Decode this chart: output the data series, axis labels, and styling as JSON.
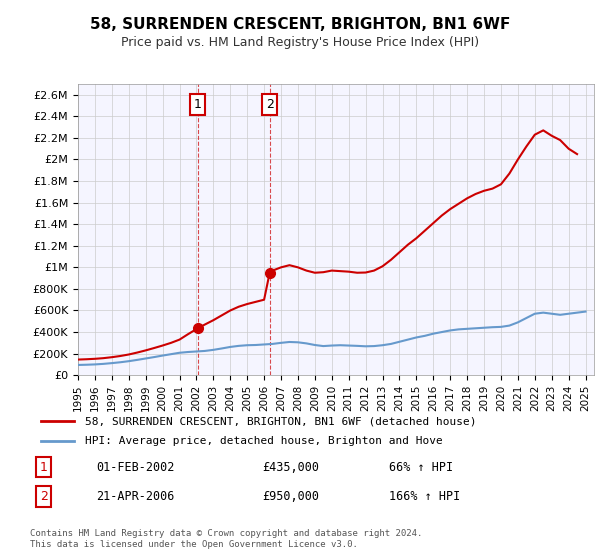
{
  "title": "58, SURRENDEN CRESCENT, BRIGHTON, BN1 6WF",
  "subtitle": "Price paid vs. HM Land Registry's House Price Index (HPI)",
  "ylabel_ticks": [
    "£0",
    "£200K",
    "£400K",
    "£600K",
    "£800K",
    "£1M",
    "£1.2M",
    "£1.4M",
    "£1.6M",
    "£1.8M",
    "£2M",
    "£2.2M",
    "£2.4M",
    "£2.6M"
  ],
  "ytick_vals": [
    0,
    200000,
    400000,
    600000,
    800000,
    1000000,
    1200000,
    1400000,
    1600000,
    1800000,
    2000000,
    2200000,
    2400000,
    2600000
  ],
  "ylim": [
    0,
    2700000
  ],
  "xlim_start": 1995.0,
  "xlim_end": 2025.5,
  "hpi_x": [
    1995,
    1995.5,
    1996,
    1996.5,
    1997,
    1997.5,
    1998,
    1998.5,
    1999,
    1999.5,
    2000,
    2000.5,
    2001,
    2001.5,
    2002,
    2002.5,
    2003,
    2003.5,
    2004,
    2004.5,
    2005,
    2005.5,
    2006,
    2006.5,
    2007,
    2007.5,
    2008,
    2008.5,
    2009,
    2009.5,
    2010,
    2010.5,
    2011,
    2011.5,
    2012,
    2012.5,
    2013,
    2013.5,
    2014,
    2014.5,
    2015,
    2015.5,
    2016,
    2016.5,
    2017,
    2017.5,
    2018,
    2018.5,
    2019,
    2019.5,
    2020,
    2020.5,
    2021,
    2021.5,
    2022,
    2022.5,
    2023,
    2023.5,
    2024,
    2024.5,
    2025
  ],
  "hpi_y": [
    95000,
    97000,
    100000,
    105000,
    112000,
    120000,
    130000,
    142000,
    155000,
    168000,
    182000,
    195000,
    208000,
    215000,
    220000,
    225000,
    235000,
    248000,
    262000,
    272000,
    278000,
    280000,
    285000,
    290000,
    300000,
    308000,
    305000,
    295000,
    280000,
    270000,
    275000,
    278000,
    275000,
    272000,
    268000,
    270000,
    278000,
    290000,
    310000,
    330000,
    350000,
    365000,
    385000,
    400000,
    415000,
    425000,
    430000,
    435000,
    440000,
    445000,
    448000,
    460000,
    490000,
    530000,
    570000,
    580000,
    570000,
    560000,
    570000,
    580000,
    590000
  ],
  "property_x": [
    1995,
    1995.5,
    1996,
    1996.5,
    1997,
    1997.5,
    1998,
    1998.5,
    1999,
    1999.5,
    2000,
    2000.5,
    2001,
    2001.5,
    2002.08,
    2002.5,
    2003,
    2003.5,
    2004,
    2004.5,
    2005,
    2005.5,
    2006,
    2006.33,
    2006.5,
    2007,
    2007.5,
    2008,
    2008.5,
    2009,
    2009.5,
    2010,
    2010.5,
    2011,
    2011.5,
    2012,
    2012.5,
    2013,
    2013.5,
    2014,
    2014.5,
    2015,
    2015.5,
    2016,
    2016.5,
    2017,
    2017.5,
    2018,
    2018.5,
    2019,
    2019.5,
    2020,
    2020.5,
    2021,
    2021.5,
    2022,
    2022.5,
    2023,
    2023.5,
    2024,
    2024.5
  ],
  "property_y": [
    145000,
    148000,
    152000,
    158000,
    167000,
    178000,
    192000,
    210000,
    230000,
    252000,
    275000,
    300000,
    330000,
    380000,
    435000,
    470000,
    510000,
    555000,
    600000,
    635000,
    660000,
    680000,
    700000,
    950000,
    970000,
    1000000,
    1020000,
    1000000,
    970000,
    950000,
    955000,
    970000,
    965000,
    960000,
    950000,
    952000,
    970000,
    1010000,
    1070000,
    1140000,
    1210000,
    1270000,
    1340000,
    1410000,
    1480000,
    1540000,
    1590000,
    1640000,
    1680000,
    1710000,
    1730000,
    1770000,
    1870000,
    2000000,
    2120000,
    2230000,
    2270000,
    2220000,
    2180000,
    2100000,
    2050000
  ],
  "purchase1_x": 2002.08,
  "purchase1_y": 435000,
  "purchase1_label": "1",
  "purchase1_date": "01-FEB-2002",
  "purchase1_price": "£435,000",
  "purchase1_hpi": "66% ↑ HPI",
  "purchase2_x": 2006.33,
  "purchase2_y": 950000,
  "purchase2_label": "2",
  "purchase2_date": "21-APR-2006",
  "purchase2_price": "£950,000",
  "purchase2_hpi": "166% ↑ HPI",
  "property_color": "#cc0000",
  "hpi_color": "#6699cc",
  "marker_box_color": "#cc0000",
  "grid_color": "#cccccc",
  "background_color": "#ffffff",
  "plot_bg_color": "#f5f5ff",
  "legend_label_property": "58, SURRENDEN CRESCENT, BRIGHTON, BN1 6WF (detached house)",
  "legend_label_hpi": "HPI: Average price, detached house, Brighton and Hove",
  "footer": "Contains HM Land Registry data © Crown copyright and database right 2024.\nThis data is licensed under the Open Government Licence v3.0.",
  "xticklabels": [
    "1995",
    "1996",
    "1997",
    "1998",
    "1999",
    "2000",
    "2001",
    "2002",
    "2003",
    "2004",
    "2005",
    "2006",
    "2007",
    "2008",
    "2009",
    "2010",
    "2011",
    "2012",
    "2013",
    "2014",
    "2015",
    "2016",
    "2017",
    "2018",
    "2019",
    "2020",
    "2021",
    "2022",
    "2023",
    "2024",
    "2025"
  ]
}
